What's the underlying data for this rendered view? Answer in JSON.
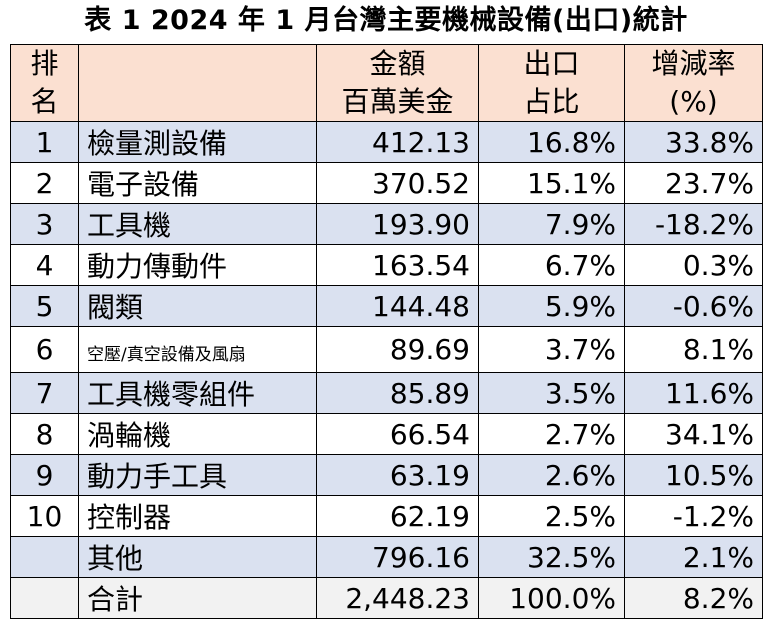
{
  "title": "表 1 2024 年 1 月台灣主要機械設備(出口)統計",
  "header": {
    "rank": [
      "排",
      "名"
    ],
    "item": [
      "",
      ""
    ],
    "amount": [
      "金額",
      "百萬美金"
    ],
    "share": [
      "出口",
      "占比"
    ],
    "growth": [
      "增減率",
      "(%)"
    ]
  },
  "rows": [
    {
      "rank": "1",
      "item": "檢量測設備",
      "amount": "412.13",
      "share": "16.8%",
      "growth": "33.8%"
    },
    {
      "rank": "2",
      "item": "電子設備",
      "amount": "370.52",
      "share": "15.1%",
      "growth": "23.7%"
    },
    {
      "rank": "3",
      "item": "工具機",
      "amount": "193.90",
      "share": "7.9%",
      "growth": "-18.2%"
    },
    {
      "rank": "4",
      "item": "動力傳動件",
      "amount": "163.54",
      "share": "6.7%",
      "growth": "0.3%"
    },
    {
      "rank": "5",
      "item": "閥類",
      "amount": "144.48",
      "share": "5.9%",
      "growth": "-0.6%"
    },
    {
      "rank": "6",
      "item": "空壓/真空設備及風扇",
      "amount": "89.69",
      "share": "3.7%",
      "growth": "8.1%"
    },
    {
      "rank": "7",
      "item": "工具機零組件",
      "amount": "85.89",
      "share": "3.5%",
      "growth": "11.6%"
    },
    {
      "rank": "8",
      "item": "渦輪機",
      "amount": "66.54",
      "share": "2.7%",
      "growth": "34.1%"
    },
    {
      "rank": "9",
      "item": "動力手工具",
      "amount": "63.19",
      "share": "2.6%",
      "growth": "10.5%"
    },
    {
      "rank": "10",
      "item": "控制器",
      "amount": "62.19",
      "share": "2.5%",
      "growth": "-1.2%"
    },
    {
      "rank": "",
      "item": "其他",
      "amount": "796.16",
      "share": "32.5%",
      "growth": "2.1%"
    },
    {
      "rank": "",
      "item": "合計",
      "amount": "2,448.23",
      "share": "100.0%",
      "growth": "8.2%"
    }
  ],
  "colors": {
    "header_bg": "#fbe0d1",
    "row_shade_bg": "#dae1f0",
    "total_row_bg": "#f2f2f2",
    "border": "#000000"
  }
}
